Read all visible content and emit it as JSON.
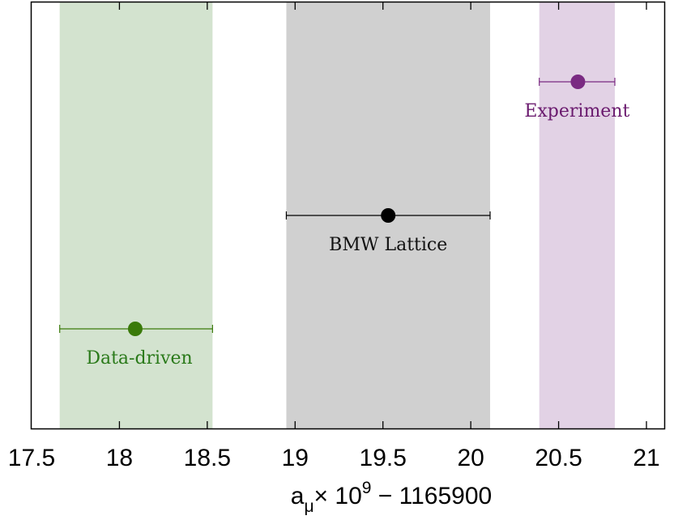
{
  "chart_data": {
    "type": "scatter",
    "subtype": "error-bar comparison with uncertainty bands",
    "title": "",
    "xlabel": "a_μ × 10^9 − 1165900",
    "xlabel_parts": {
      "base": "a",
      "subscript": "μ",
      "times": "× 10",
      "exponent": "9",
      "rest": " − 1165900"
    },
    "ylabel": "",
    "xlim": [
      17.5,
      21.1
    ],
    "xticks": [
      17.5,
      18,
      18.5,
      19,
      19.5,
      20,
      20.5,
      21
    ],
    "xtick_labels": [
      "17.5",
      "18",
      "18.5",
      "19",
      "19.5",
      "20",
      "20.5",
      "21"
    ],
    "grid": false,
    "legend": "none (inline labels)",
    "series": [
      {
        "name": "Data-driven",
        "value": 18.09,
        "error_low": 17.66,
        "error_high": 18.53,
        "band": [
          17.66,
          18.53
        ],
        "row": 3,
        "point_color": "#3a7a0a",
        "label_color": "#2a7a1a",
        "band_color": "#d3e3cf"
      },
      {
        "name": "BMW Lattice",
        "value": 19.53,
        "error_low": 18.95,
        "error_high": 20.11,
        "band": [
          18.95,
          20.11
        ],
        "row": 2,
        "point_color": "#000000",
        "label_color": "#111111",
        "band_color": "#d0d0d0"
      },
      {
        "name": "Experiment",
        "value": 20.61,
        "error_low": 20.39,
        "error_high": 20.82,
        "band": [
          20.39,
          20.82
        ],
        "row": 1,
        "point_color": "#7a2a82",
        "label_color": "#6a1a6e",
        "band_color": "#e2d2e5"
      }
    ]
  }
}
